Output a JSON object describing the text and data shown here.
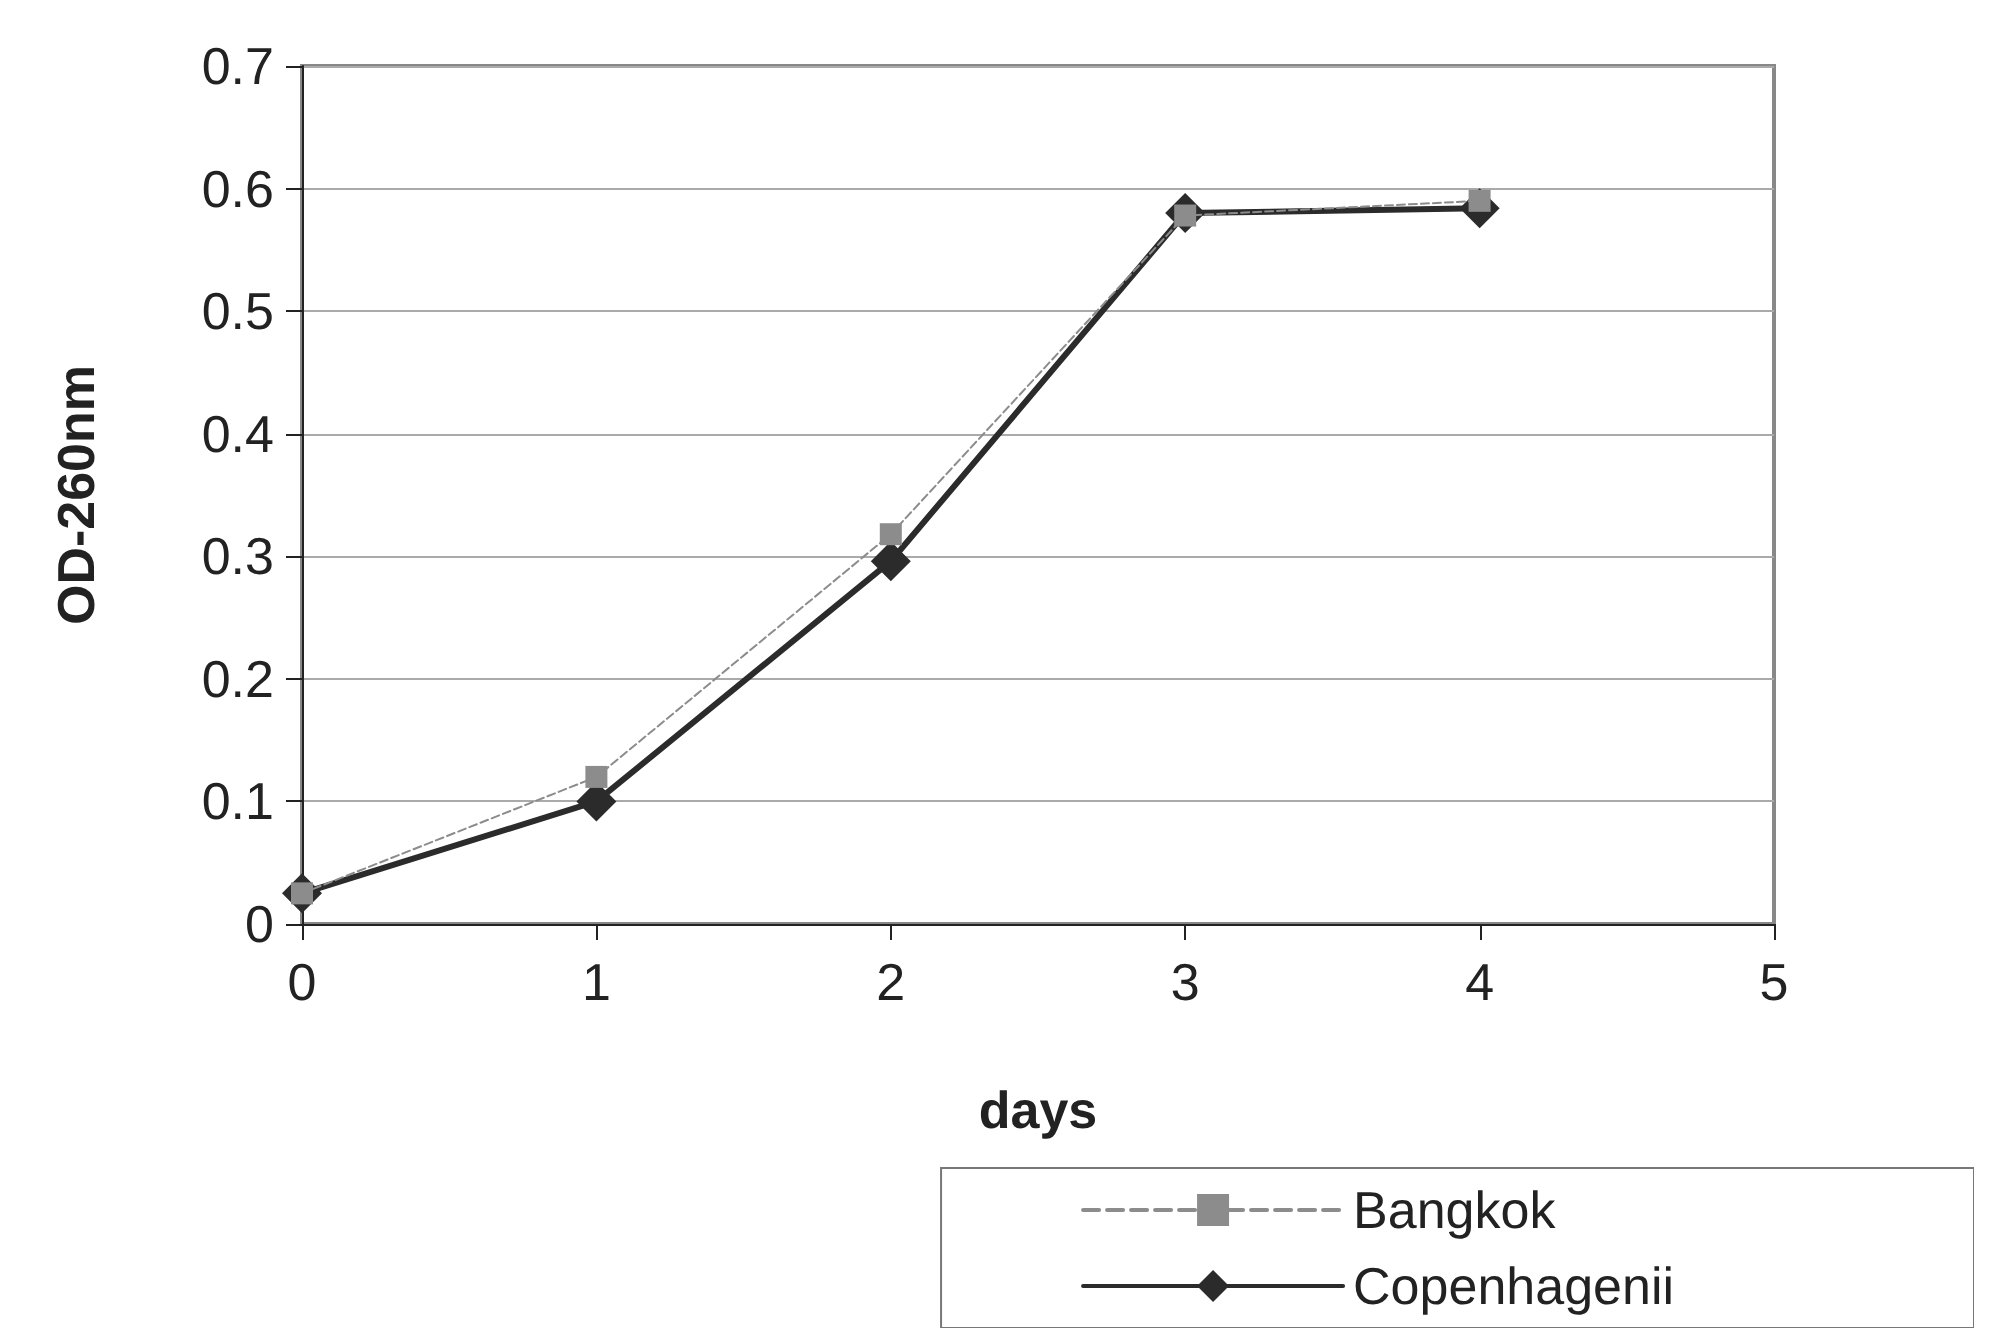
{
  "chart_data": {
    "type": "line",
    "xlabel": "days",
    "ylabel": "OD-260nm",
    "x": [
      0,
      1,
      2,
      3,
      4
    ],
    "series": [
      {
        "name": "Bangkok",
        "color": "#8c8c8c",
        "marker": "square",
        "line_style": "dashed",
        "values": [
          0.025,
          0.12,
          0.318,
          0.578,
          0.59
        ]
      },
      {
        "name": "Copenhagenii",
        "color": "#2b2b2b",
        "marker": "diamond",
        "line_style": "solid",
        "values": [
          0.025,
          0.1,
          0.296,
          0.58,
          0.584
        ]
      }
    ],
    "xlim": [
      0,
      5
    ],
    "xticks": [
      0,
      1,
      2,
      3,
      4,
      5
    ],
    "ylim": [
      0,
      0.7
    ],
    "yticks": [
      0,
      0.1,
      0.2,
      0.3,
      0.4,
      0.5,
      0.6,
      0.7
    ],
    "grid": "y",
    "legend": "bottom right"
  }
}
